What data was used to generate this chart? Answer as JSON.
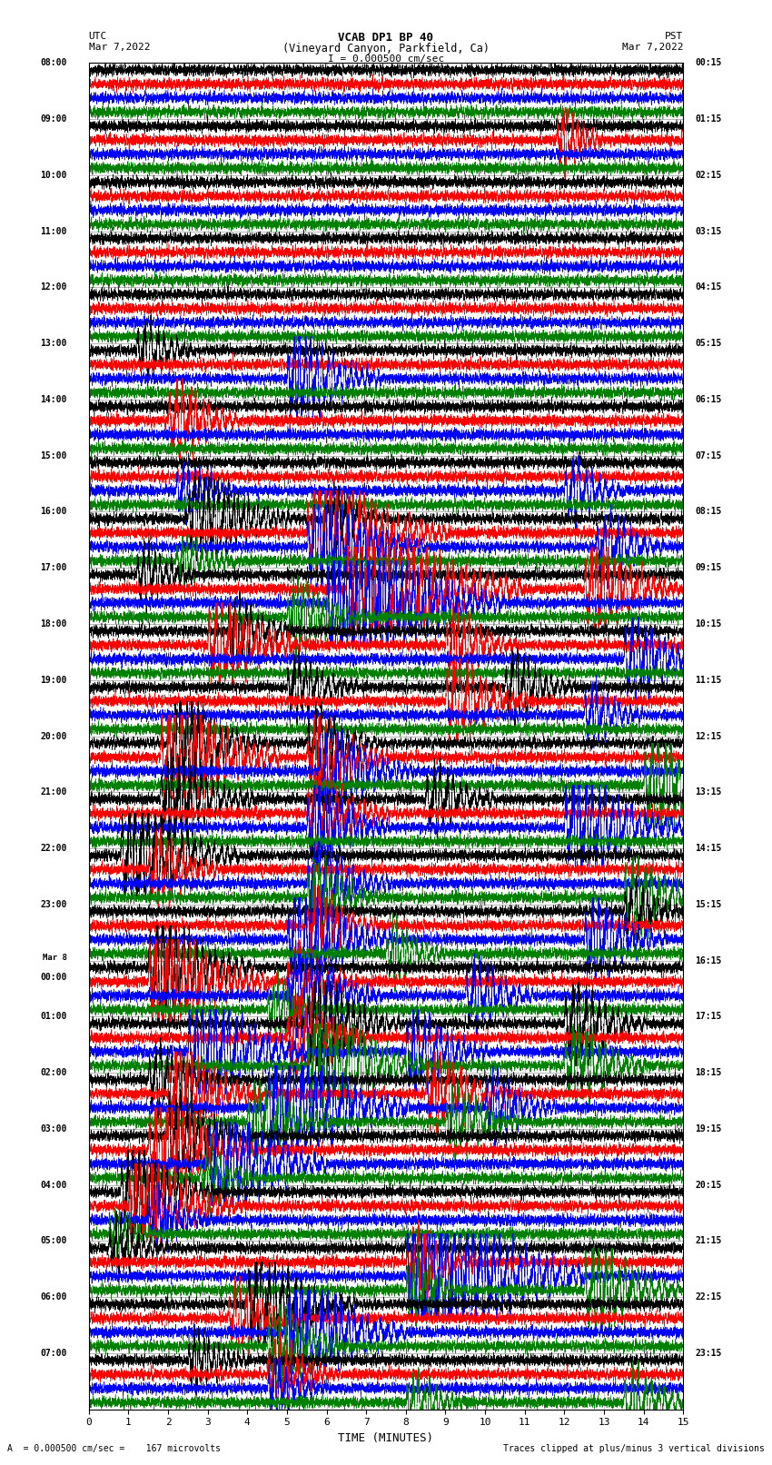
{
  "title_line1": "VCAB DP1 BP 40",
  "title_line2": "(Vineyard Canyon, Parkfield, Ca)",
  "scale_label": "I = 0.000500 cm/sec",
  "left_label_top": "UTC",
  "left_label_date": "Mar 7,2022",
  "right_label_top": "PST",
  "right_label_date": "Mar 7,2022",
  "xlabel": "TIME (MINUTES)",
  "bottom_left": "A  = 0.000500 cm/sec =    167 microvolts",
  "bottom_right": "Traces clipped at plus/minus 3 vertical divisions",
  "colors": [
    "black",
    "red",
    "blue",
    "green"
  ],
  "hour_labels_left": [
    "08:00",
    "09:00",
    "10:00",
    "11:00",
    "12:00",
    "13:00",
    "14:00",
    "15:00",
    "16:00",
    "17:00",
    "18:00",
    "19:00",
    "20:00",
    "21:00",
    "22:00",
    "23:00",
    "Mar 8\n00:00",
    "01:00",
    "02:00",
    "03:00",
    "04:00",
    "05:00",
    "06:00",
    "07:00"
  ],
  "hour_labels_right": [
    "00:15",
    "01:15",
    "02:15",
    "03:15",
    "04:15",
    "05:15",
    "06:15",
    "07:15",
    "08:15",
    "09:15",
    "10:15",
    "11:15",
    "12:15",
    "13:15",
    "14:15",
    "15:15",
    "16:15",
    "17:15",
    "18:15",
    "19:15",
    "20:15",
    "21:15",
    "22:15",
    "23:15"
  ],
  "num_hours": 24,
  "traces_per_hour": 4,
  "xmin": 0,
  "xmax": 15,
  "xticks": [
    0,
    1,
    2,
    3,
    4,
    5,
    6,
    7,
    8,
    9,
    10,
    11,
    12,
    13,
    14,
    15
  ],
  "background_color": "white",
  "noise_amplitude": 0.18,
  "clip_level": 3.0,
  "event_seed": 12345
}
